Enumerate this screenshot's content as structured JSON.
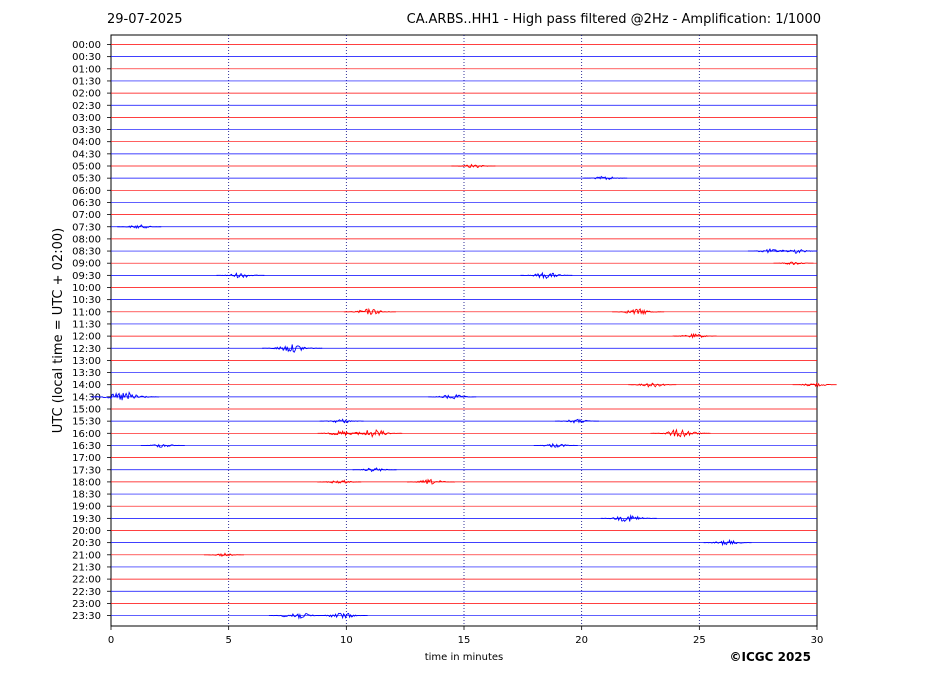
{
  "header": {
    "date": "29-07-2025",
    "title": "CA.ARBS..HH1 - High pass filtered @2Hz - Amplification: 1/1000"
  },
  "credit": "©ICGC 2025",
  "chart_data": {
    "type": "line",
    "title": "CA.ARBS..HH1 - High pass filtered @2Hz - Amplification: 1/1000",
    "xlabel": "time in minutes",
    "ylabel": "UTC (local time = UTC + 02:00)",
    "xlim": [
      0,
      30
    ],
    "xticks": [
      0,
      5,
      10,
      15,
      20,
      25,
      30
    ],
    "grid": "vertical dotted at each x tick",
    "series_colors": [
      "#ff0000",
      "#0000ff"
    ],
    "rows": [
      "00:00",
      "00:30",
      "01:00",
      "01:30",
      "02:00",
      "02:30",
      "03:00",
      "03:30",
      "04:00",
      "04:30",
      "05:00",
      "05:30",
      "06:00",
      "06:30",
      "07:00",
      "07:30",
      "08:00",
      "08:30",
      "09:00",
      "09:30",
      "10:00",
      "10:30",
      "11:00",
      "11:30",
      "12:00",
      "12:30",
      "13:00",
      "13:30",
      "14:00",
      "14:30",
      "15:00",
      "15:30",
      "16:00",
      "16:30",
      "17:00",
      "17:30",
      "18:00",
      "18:30",
      "19:00",
      "19:30",
      "20:00",
      "20:30",
      "21:00",
      "21:30",
      "22:00",
      "22:30",
      "23:00",
      "23:30"
    ],
    "events": [
      {
        "row": "05:00",
        "t": 15.4,
        "amp": 2
      },
      {
        "row": "05:30",
        "t": 21.0,
        "amp": 2
      },
      {
        "row": "07:30",
        "t": 1.2,
        "amp": 2
      },
      {
        "row": "08:30",
        "t": 28.0,
        "amp": 2
      },
      {
        "row": "08:30",
        "t": 29.0,
        "amp": 2.5
      },
      {
        "row": "09:00",
        "t": 29.0,
        "amp": 1.5
      },
      {
        "row": "09:30",
        "t": 5.5,
        "amp": 2.5
      },
      {
        "row": "09:30",
        "t": 18.5,
        "amp": 3
      },
      {
        "row": "11:00",
        "t": 11.0,
        "amp": 3
      },
      {
        "row": "11:00",
        "t": 22.4,
        "amp": 3
      },
      {
        "row": "12:00",
        "t": 24.8,
        "amp": 2
      },
      {
        "row": "12:30",
        "t": 7.7,
        "amp": 4
      },
      {
        "row": "14:00",
        "t": 23.0,
        "amp": 2.5
      },
      {
        "row": "14:00",
        "t": 29.9,
        "amp": 2
      },
      {
        "row": "14:30",
        "t": 0.6,
        "amp": 5
      },
      {
        "row": "14:30",
        "t": 14.5,
        "amp": 2.5
      },
      {
        "row": "15:30",
        "t": 9.8,
        "amp": 2
      },
      {
        "row": "15:30",
        "t": 19.8,
        "amp": 2
      },
      {
        "row": "16:00",
        "t": 9.8,
        "amp": 2.5
      },
      {
        "row": "16:00",
        "t": 11.1,
        "amp": 4
      },
      {
        "row": "16:00",
        "t": 24.2,
        "amp": 4
      },
      {
        "row": "16:30",
        "t": 2.2,
        "amp": 2
      },
      {
        "row": "16:30",
        "t": 18.9,
        "amp": 2
      },
      {
        "row": "17:30",
        "t": 11.2,
        "amp": 2
      },
      {
        "row": "18:00",
        "t": 9.7,
        "amp": 2
      },
      {
        "row": "18:00",
        "t": 13.6,
        "amp": 2.5
      },
      {
        "row": "19:30",
        "t": 22.0,
        "amp": 3.5
      },
      {
        "row": "20:30",
        "t": 26.2,
        "amp": 2.5
      },
      {
        "row": "21:00",
        "t": 4.8,
        "amp": 1.5
      },
      {
        "row": "23:30",
        "t": 7.9,
        "amp": 3.5
      },
      {
        "row": "23:30",
        "t": 9.8,
        "amp": 3
      }
    ]
  }
}
